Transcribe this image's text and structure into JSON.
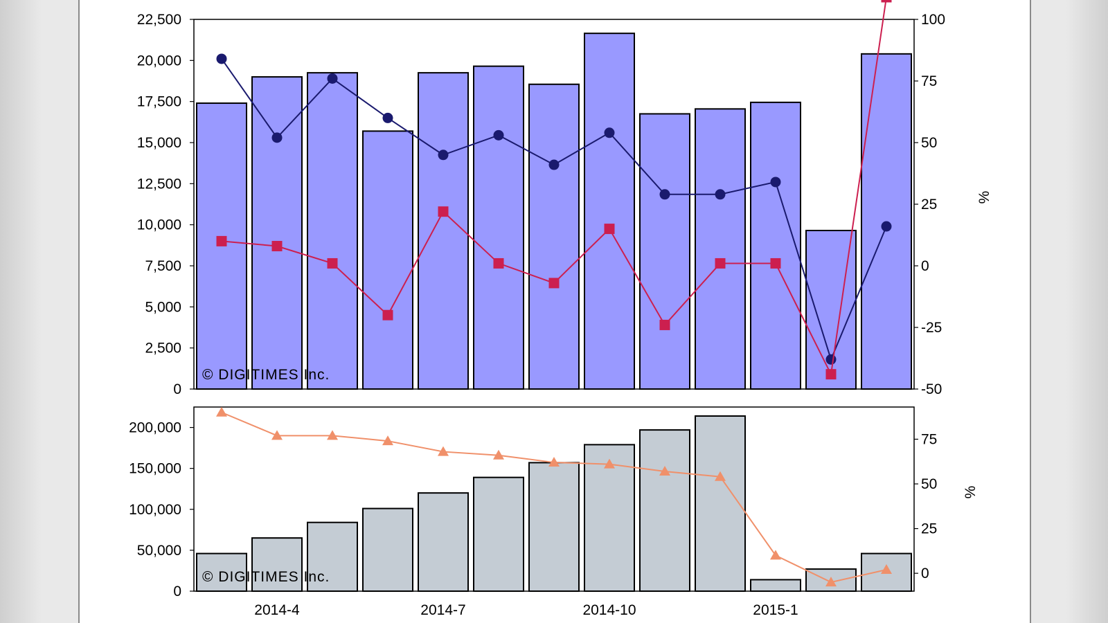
{
  "watermark": "© DIGITIMES Inc.",
  "colors": {
    "top_bar": "#9999ff",
    "bottom_bar": "#c4ccd4",
    "blue_line": "#1a1a6e",
    "red_line": "#cc1f4f",
    "orange_line": "#f0906a"
  },
  "chart_data": [
    {
      "type": "bar",
      "categories": [
        "2014-3",
        "2014-4",
        "2014-5",
        "2014-6",
        "2014-7",
        "2014-8",
        "2014-9",
        "2014-10",
        "2014-11",
        "2014-12",
        "2015-1",
        "2015-2",
        "2015-3"
      ],
      "x_tick_labels": [
        "2014-4",
        "2014-7",
        "2014-10",
        "2015-1"
      ],
      "ylim": [
        0,
        22500
      ],
      "y2lim": [
        -50,
        100
      ],
      "y_ticks": [
        "0",
        "2,500",
        "5,000",
        "7,500",
        "10,000",
        "12,500",
        "15,000",
        "17,500",
        "20,000",
        "22,500"
      ],
      "y2_ticks": [
        "-50",
        "-25",
        "0",
        "25",
        "50",
        "75",
        "100"
      ],
      "y2label": "%",
      "grid": false,
      "series": [
        {
          "kind": "bar",
          "values": [
            17400,
            19000,
            19250,
            15700,
            19250,
            19650,
            18550,
            21650,
            16750,
            17050,
            17450,
            9650,
            20400
          ]
        },
        {
          "kind": "line",
          "axis": "y2",
          "marker": "circle",
          "values": [
            84,
            52,
            76,
            60,
            45,
            53,
            41,
            54,
            29,
            29,
            34,
            -38,
            16
          ]
        },
        {
          "kind": "line",
          "axis": "y2",
          "marker": "square",
          "values": [
            10,
            8,
            1,
            -20,
            22,
            1,
            -7,
            15,
            -24,
            1,
            1,
            -44,
            109
          ]
        }
      ]
    },
    {
      "type": "bar",
      "categories": [
        "2014-3",
        "2014-4",
        "2014-5",
        "2014-6",
        "2014-7",
        "2014-8",
        "2014-9",
        "2014-10",
        "2014-11",
        "2014-12",
        "2015-1",
        "2015-2",
        "2015-3"
      ],
      "x_tick_labels": [
        "2014-4",
        "2014-7",
        "2014-10",
        "2015-1"
      ],
      "ylim": [
        0,
        225000
      ],
      "y2lim": [
        -10,
        93
      ],
      "y_ticks": [
        "0",
        "50,000",
        "100,000",
        "150,000",
        "200,000"
      ],
      "y2_ticks": [
        "0",
        "25",
        "50",
        "75"
      ],
      "y2label": "%",
      "grid": false,
      "series": [
        {
          "kind": "bar",
          "values": [
            46000,
            65000,
            84000,
            101000,
            120000,
            139000,
            157000,
            179000,
            197000,
            214000,
            14000,
            27000,
            46000
          ]
        },
        {
          "kind": "line",
          "axis": "y2",
          "marker": "triangle",
          "values": [
            90,
            77,
            77,
            74,
            68,
            66,
            62,
            61,
            57,
            54,
            10,
            -5,
            2
          ]
        }
      ]
    }
  ]
}
